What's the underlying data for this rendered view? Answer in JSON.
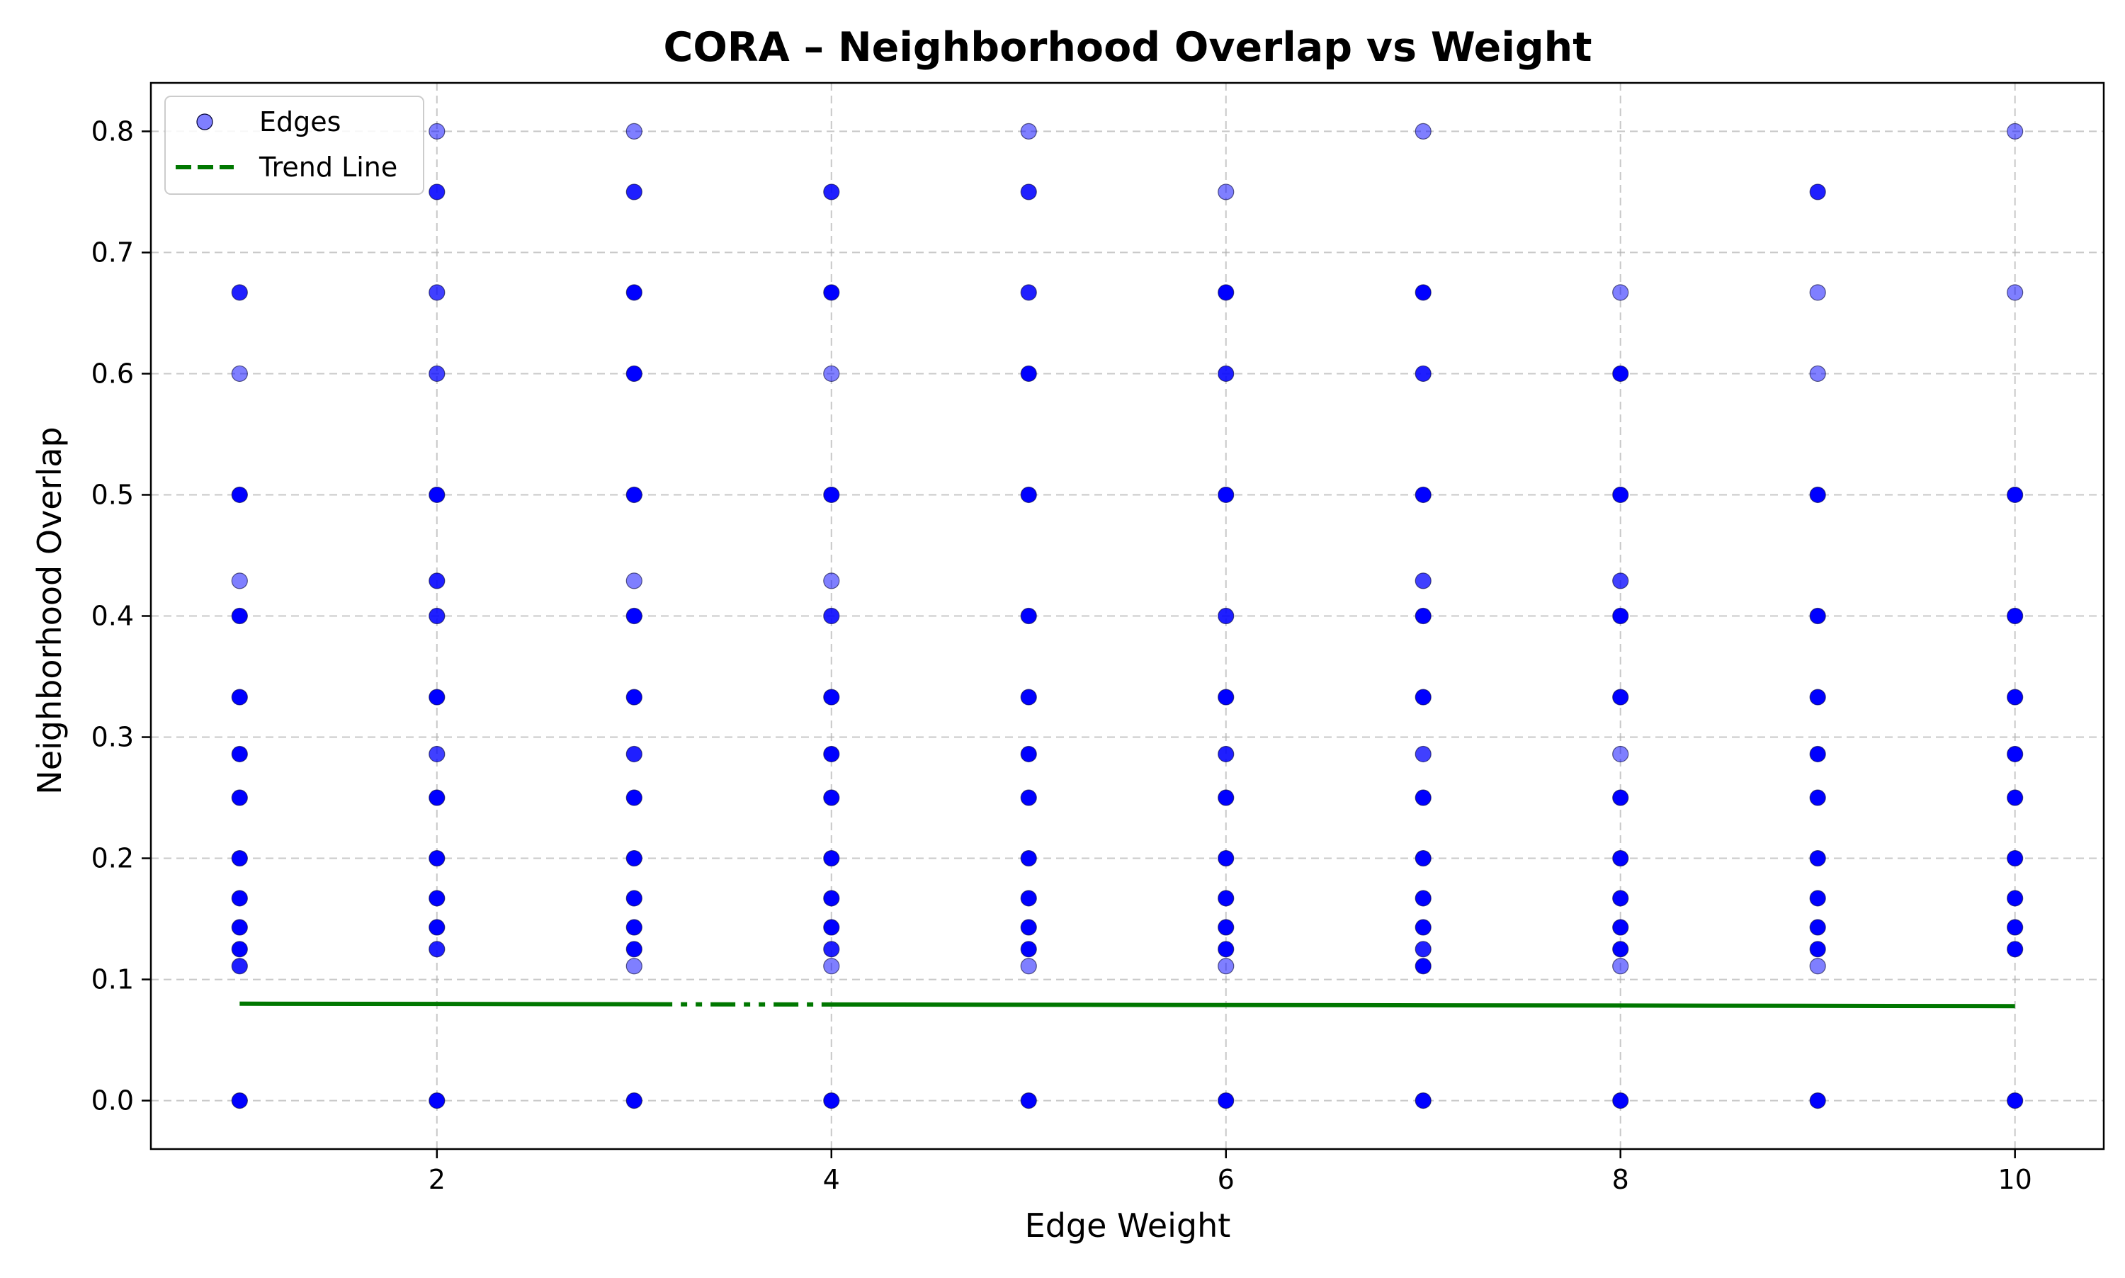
{
  "chart_data": {
    "type": "scatter",
    "title": "CORA – Neighborhood Overlap vs Weight",
    "xlabel": "Edge Weight",
    "ylabel": "Neighborhood Overlap",
    "xlim": [
      0.55,
      10.45
    ],
    "ylim": [
      -0.04,
      0.84
    ],
    "xticks": [
      2,
      4,
      6,
      8,
      10
    ],
    "yticks": [
      0.0,
      0.1,
      0.2,
      0.3,
      0.4,
      0.5,
      0.6,
      0.7,
      0.8
    ],
    "ytick_labels": [
      "0.0",
      "0.1",
      "0.2",
      "0.3",
      "0.4",
      "0.5",
      "0.6",
      "0.7",
      "0.8"
    ],
    "xtick_labels": [
      "2",
      "4",
      "6",
      "8",
      "10"
    ],
    "grid": true,
    "legend_position": "top-left",
    "legend": [
      {
        "label": "Edges",
        "kind": "marker",
        "color": "#0000ff"
      },
      {
        "label": "Trend Line",
        "kind": "dashed-line",
        "color": "#007700"
      }
    ],
    "series": [
      {
        "name": "Edges",
        "kind": "scatter",
        "color": "#0000ff",
        "points": [
          [
            1,
            0.0,
            4
          ],
          [
            1,
            0.111,
            3
          ],
          [
            1,
            0.125,
            4
          ],
          [
            1,
            0.143,
            4
          ],
          [
            1,
            0.167,
            4
          ],
          [
            1,
            0.2,
            4
          ],
          [
            1,
            0.25,
            4
          ],
          [
            1,
            0.286,
            4
          ],
          [
            1,
            0.333,
            4
          ],
          [
            1,
            0.4,
            4
          ],
          [
            1,
            0.429,
            1
          ],
          [
            1,
            0.5,
            4
          ],
          [
            1,
            0.6,
            1
          ],
          [
            1,
            0.667,
            3
          ],
          [
            2,
            0.0,
            4
          ],
          [
            2,
            0.125,
            3
          ],
          [
            2,
            0.143,
            4
          ],
          [
            2,
            0.167,
            4
          ],
          [
            2,
            0.2,
            4
          ],
          [
            2,
            0.25,
            4
          ],
          [
            2,
            0.286,
            2
          ],
          [
            2,
            0.333,
            4
          ],
          [
            2,
            0.4,
            3
          ],
          [
            2,
            0.429,
            3
          ],
          [
            2,
            0.5,
            4
          ],
          [
            2,
            0.6,
            2
          ],
          [
            2,
            0.667,
            2
          ],
          [
            2,
            0.75,
            3
          ],
          [
            2,
            0.8,
            1
          ],
          [
            3,
            0.0,
            4
          ],
          [
            3,
            0.111,
            1
          ],
          [
            3,
            0.125,
            4
          ],
          [
            3,
            0.143,
            4
          ],
          [
            3,
            0.167,
            4
          ],
          [
            3,
            0.2,
            4
          ],
          [
            3,
            0.25,
            4
          ],
          [
            3,
            0.286,
            3
          ],
          [
            3,
            0.333,
            4
          ],
          [
            3,
            0.4,
            4
          ],
          [
            3,
            0.429,
            1
          ],
          [
            3,
            0.5,
            4
          ],
          [
            3,
            0.6,
            4
          ],
          [
            3,
            0.667,
            4
          ],
          [
            3,
            0.75,
            3
          ],
          [
            3,
            0.8,
            1
          ],
          [
            4,
            0.0,
            4
          ],
          [
            4,
            0.111,
            1
          ],
          [
            4,
            0.125,
            3
          ],
          [
            4,
            0.143,
            4
          ],
          [
            4,
            0.167,
            4
          ],
          [
            4,
            0.2,
            4
          ],
          [
            4,
            0.25,
            4
          ],
          [
            4,
            0.286,
            4
          ],
          [
            4,
            0.333,
            4
          ],
          [
            4,
            0.4,
            3
          ],
          [
            4,
            0.429,
            1
          ],
          [
            4,
            0.5,
            4
          ],
          [
            4,
            0.6,
            1
          ],
          [
            4,
            0.667,
            4
          ],
          [
            4,
            0.75,
            3
          ],
          [
            5,
            0.0,
            4
          ],
          [
            5,
            0.111,
            1
          ],
          [
            5,
            0.125,
            4
          ],
          [
            5,
            0.143,
            4
          ],
          [
            5,
            0.167,
            4
          ],
          [
            5,
            0.2,
            4
          ],
          [
            5,
            0.25,
            4
          ],
          [
            5,
            0.286,
            4
          ],
          [
            5,
            0.333,
            4
          ],
          [
            5,
            0.4,
            4
          ],
          [
            5,
            0.5,
            4
          ],
          [
            5,
            0.6,
            4
          ],
          [
            5,
            0.667,
            3
          ],
          [
            5,
            0.75,
            3
          ],
          [
            5,
            0.8,
            1
          ],
          [
            6,
            0.0,
            4
          ],
          [
            6,
            0.111,
            1
          ],
          [
            6,
            0.125,
            4
          ],
          [
            6,
            0.143,
            4
          ],
          [
            6,
            0.167,
            4
          ],
          [
            6,
            0.2,
            4
          ],
          [
            6,
            0.25,
            4
          ],
          [
            6,
            0.286,
            3
          ],
          [
            6,
            0.333,
            4
          ],
          [
            6,
            0.4,
            3
          ],
          [
            6,
            0.5,
            4
          ],
          [
            6,
            0.6,
            3
          ],
          [
            6,
            0.667,
            4
          ],
          [
            6,
            0.75,
            1
          ],
          [
            7,
            0.0,
            4
          ],
          [
            7,
            0.111,
            4
          ],
          [
            7,
            0.125,
            3
          ],
          [
            7,
            0.143,
            4
          ],
          [
            7,
            0.167,
            4
          ],
          [
            7,
            0.2,
            4
          ],
          [
            7,
            0.25,
            4
          ],
          [
            7,
            0.286,
            2
          ],
          [
            7,
            0.333,
            4
          ],
          [
            7,
            0.4,
            4
          ],
          [
            7,
            0.429,
            2
          ],
          [
            7,
            0.5,
            4
          ],
          [
            7,
            0.6,
            3
          ],
          [
            7,
            0.667,
            4
          ],
          [
            7,
            0.8,
            1
          ],
          [
            8,
            0.0,
            4
          ],
          [
            8,
            0.111,
            1
          ],
          [
            8,
            0.125,
            4
          ],
          [
            8,
            0.143,
            4
          ],
          [
            8,
            0.167,
            4
          ],
          [
            8,
            0.2,
            4
          ],
          [
            8,
            0.25,
            4
          ],
          [
            8,
            0.286,
            1
          ],
          [
            8,
            0.333,
            4
          ],
          [
            8,
            0.4,
            4
          ],
          [
            8,
            0.429,
            2
          ],
          [
            8,
            0.5,
            4
          ],
          [
            8,
            0.6,
            4
          ],
          [
            8,
            0.667,
            1
          ],
          [
            9,
            0.0,
            4
          ],
          [
            9,
            0.111,
            1
          ],
          [
            9,
            0.125,
            4
          ],
          [
            9,
            0.143,
            4
          ],
          [
            9,
            0.167,
            4
          ],
          [
            9,
            0.2,
            4
          ],
          [
            9,
            0.25,
            4
          ],
          [
            9,
            0.286,
            4
          ],
          [
            9,
            0.333,
            4
          ],
          [
            9,
            0.4,
            4
          ],
          [
            9,
            0.5,
            4
          ],
          [
            9,
            0.6,
            1
          ],
          [
            9,
            0.667,
            1
          ],
          [
            9,
            0.75,
            3
          ],
          [
            10,
            0.0,
            4
          ],
          [
            10,
            0.125,
            4
          ],
          [
            10,
            0.143,
            4
          ],
          [
            10,
            0.167,
            4
          ],
          [
            10,
            0.2,
            4
          ],
          [
            10,
            0.25,
            4
          ],
          [
            10,
            0.286,
            4
          ],
          [
            10,
            0.333,
            4
          ],
          [
            10,
            0.4,
            4
          ],
          [
            10,
            0.5,
            4
          ],
          [
            10,
            0.667,
            1
          ],
          [
            10,
            0.8,
            1
          ]
        ]
      },
      {
        "name": "Trend Line",
        "kind": "line",
        "style": "dashed",
        "color": "#007700",
        "x": [
          1,
          10
        ],
        "y": [
          0.08,
          0.078
        ]
      }
    ]
  }
}
